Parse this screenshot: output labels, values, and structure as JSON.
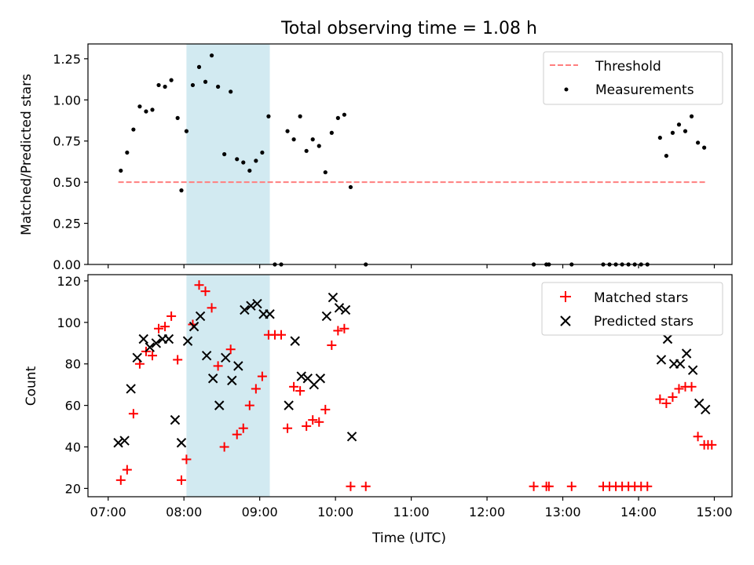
{
  "title": "Total observing time = 1.08 h",
  "chart_data": [
    {
      "type": "scatter",
      "ylabel": "Matched/Predicted stars",
      "ylim": [
        0,
        1.34
      ],
      "yticks": [
        "0.00",
        "0.25",
        "0.50",
        "0.75",
        "1.00",
        "1.25"
      ],
      "ytick_values": [
        0,
        0.25,
        0.5,
        0.75,
        1.0,
        1.25
      ],
      "legend": [
        "Threshold",
        "Measurements"
      ],
      "legend_position": "upper right",
      "threshold": {
        "name": "Threshold",
        "y": 0.5,
        "x_range": [
          "07:08",
          "14:53"
        ],
        "color": "#ff7f7f"
      },
      "highlight": {
        "from": "08:02",
        "to": "09:08",
        "color": "#add8e6"
      },
      "series": [
        {
          "name": "Measurements",
          "color": "#000000",
          "x": [
            "07:10",
            "07:15",
            "07:20",
            "07:25",
            "07:30",
            "07:35",
            "07:40",
            "07:45",
            "07:50",
            "07:55",
            "07:58",
            "08:02",
            "08:07",
            "08:12",
            "08:17",
            "08:22",
            "08:27",
            "08:32",
            "08:37",
            "08:42",
            "08:47",
            "08:52",
            "08:57",
            "09:02",
            "09:07",
            "09:12",
            "09:17",
            "09:22",
            "09:27",
            "09:32",
            "09:37",
            "09:42",
            "09:47",
            "09:52",
            "09:57",
            "10:02",
            "10:07",
            "10:12",
            "10:24",
            "12:37",
            "12:47",
            "12:49",
            "13:07",
            "13:32",
            "13:37",
            "13:42",
            "13:47",
            "13:52",
            "13:57",
            "14:02",
            "14:07",
            "14:17",
            "14:22",
            "14:27",
            "14:32",
            "14:37",
            "14:42",
            "14:47",
            "14:52"
          ],
          "y": [
            0.57,
            0.68,
            0.82,
            0.96,
            0.93,
            0.94,
            1.09,
            1.08,
            1.12,
            0.89,
            0.45,
            0.81,
            1.09,
            1.2,
            1.11,
            1.27,
            1.08,
            0.67,
            1.05,
            0.64,
            0.62,
            0.57,
            0.63,
            0.68,
            0.9,
            0.0,
            0.0,
            0.81,
            0.76,
            0.9,
            0.69,
            0.76,
            0.72,
            0.56,
            0.8,
            0.89,
            0.91,
            0.47,
            0.0,
            0.0,
            0.0,
            0.0,
            0.0,
            0.0,
            0.0,
            0.0,
            0.0,
            0.0,
            0.0,
            0.0,
            0.0,
            0.77,
            0.66,
            0.8,
            0.85,
            0.81,
            0.9,
            0.74,
            0.71
          ]
        }
      ]
    },
    {
      "type": "scatter",
      "ylabel": "Count",
      "xlabel": "Time (UTC)",
      "ylim": [
        16,
        123
      ],
      "yticks": [
        "20",
        "40",
        "60",
        "80",
        "100",
        "120"
      ],
      "ytick_values": [
        20,
        40,
        60,
        80,
        100,
        120
      ],
      "xticks": [
        "07:00",
        "08:00",
        "09:00",
        "10:00",
        "11:00",
        "12:00",
        "13:00",
        "14:00",
        "15:00"
      ],
      "xlim": [
        "06:44",
        "15:14"
      ],
      "legend": [
        "Matched stars",
        "Predicted stars"
      ],
      "legend_position": "upper right",
      "highlight": {
        "from": "08:02",
        "to": "09:08",
        "color": "#add8e6"
      },
      "series": [
        {
          "name": "Matched stars",
          "marker": "+",
          "color": "#ff0000",
          "x": [
            "07:10",
            "07:15",
            "07:20",
            "07:25",
            "07:30",
            "07:35",
            "07:40",
            "07:45",
            "07:50",
            "07:55",
            "07:58",
            "08:02",
            "08:07",
            "08:12",
            "08:17",
            "08:22",
            "08:27",
            "08:32",
            "08:37",
            "08:42",
            "08:47",
            "08:52",
            "08:57",
            "09:02",
            "09:07",
            "09:12",
            "09:17",
            "09:22",
            "09:27",
            "09:32",
            "09:37",
            "09:42",
            "09:47",
            "09:52",
            "09:57",
            "10:02",
            "10:07",
            "10:12",
            "10:24",
            "12:37",
            "12:47",
            "12:49",
            "13:07",
            "13:32",
            "13:37",
            "13:42",
            "13:47",
            "13:52",
            "13:57",
            "14:02",
            "14:07",
            "14:17",
            "14:22",
            "14:27",
            "14:32",
            "14:37",
            "14:42",
            "14:47",
            "14:52",
            "14:55",
            "14:58"
          ],
          "y": [
            24,
            29,
            56,
            80,
            86,
            84,
            97,
            98,
            103,
            82,
            24,
            34,
            99,
            118,
            115,
            107,
            79,
            40,
            87,
            46,
            49,
            60,
            68,
            74,
            94,
            94,
            94,
            49,
            69,
            67,
            50,
            53,
            52,
            58,
            89,
            96,
            97,
            21,
            21,
            21,
            21,
            21,
            21,
            21,
            21,
            21,
            21,
            21,
            21,
            21,
            21,
            63,
            61,
            64,
            68,
            69,
            69,
            45,
            41,
            41,
            41
          ]
        },
        {
          "name": "Predicted stars",
          "marker": "x",
          "color": "#000000",
          "x": [
            "07:08",
            "07:13",
            "07:18",
            "07:23",
            "07:28",
            "07:33",
            "07:38",
            "07:43",
            "07:48",
            "07:53",
            "07:58",
            "08:03",
            "08:08",
            "08:13",
            "08:18",
            "08:23",
            "08:28",
            "08:33",
            "08:38",
            "08:43",
            "08:48",
            "08:53",
            "08:58",
            "09:03",
            "09:08",
            "09:23",
            "09:28",
            "09:33",
            "09:38",
            "09:43",
            "09:48",
            "09:53",
            "09:58",
            "10:03",
            "10:08",
            "10:13",
            "14:18",
            "14:23",
            "14:28",
            "14:33",
            "14:38",
            "14:43",
            "14:48",
            "14:53"
          ],
          "y": [
            42,
            43,
            68,
            83,
            92,
            88,
            90,
            92,
            92,
            53,
            42,
            91,
            98,
            103,
            84,
            73,
            60,
            83,
            72,
            79,
            106,
            108,
            109,
            104,
            104,
            60,
            91,
            74,
            73,
            70,
            73,
            103,
            112,
            107,
            106,
            45,
            82,
            92,
            80,
            80,
            85,
            77,
            61,
            58
          ]
        }
      ]
    }
  ]
}
